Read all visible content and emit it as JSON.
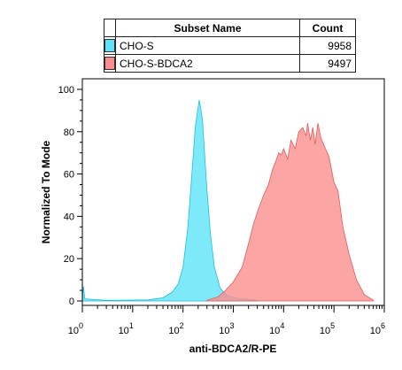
{
  "legend": {
    "headers": {
      "name": "Subset Name",
      "count": "Count"
    },
    "rows": [
      {
        "name": "CHO-S",
        "count": "9958",
        "color": "#5ee3f8"
      },
      {
        "name": "CHO-S-BDCA2",
        "count": "9497",
        "color": "#fa8e8f"
      }
    ]
  },
  "chart_data": {
    "type": "area",
    "xlabel": "anti-BDCA2/R-PE",
    "ylabel": "Normalized To Mode",
    "x_scale": "log",
    "xlim": [
      1,
      1000000
    ],
    "ylim": [
      0,
      105
    ],
    "yticks": [
      0,
      20,
      40,
      60,
      80,
      100
    ],
    "xticks": [
      {
        "base": "10",
        "exp": "0"
      },
      {
        "base": "10",
        "exp": "1"
      },
      {
        "base": "10",
        "exp": "2"
      },
      {
        "base": "10",
        "exp": "3"
      },
      {
        "base": "10",
        "exp": "4"
      },
      {
        "base": "10",
        "exp": "5"
      },
      {
        "base": "10",
        "exp": "6"
      }
    ],
    "grid": false,
    "series": [
      {
        "name": "CHO-S",
        "fill": "#5ee3f8",
        "stroke": "#1fbfd8",
        "points": [
          [
            1,
            0
          ],
          [
            1.05,
            7
          ],
          [
            1.12,
            1
          ],
          [
            3,
            0.3
          ],
          [
            20,
            0.5
          ],
          [
            40,
            1.5
          ],
          [
            60,
            4
          ],
          [
            80,
            8
          ],
          [
            100,
            16
          ],
          [
            125,
            35
          ],
          [
            150,
            60
          ],
          [
            175,
            82
          ],
          [
            195,
            90
          ],
          [
            210,
            95
          ],
          [
            225,
            91
          ],
          [
            245,
            85
          ],
          [
            265,
            72
          ],
          [
            300,
            52
          ],
          [
            350,
            32
          ],
          [
            420,
            16
          ],
          [
            550,
            6
          ],
          [
            750,
            2.5
          ],
          [
            1200,
            1.2
          ],
          [
            3000,
            0.3
          ]
        ]
      },
      {
        "name": "CHO-S-BDCA2",
        "fill": "#fa8e8f",
        "stroke": "#e45a5c",
        "points": [
          [
            300,
            0.3
          ],
          [
            500,
            2
          ],
          [
            700,
            5
          ],
          [
            1000,
            9
          ],
          [
            1500,
            16
          ],
          [
            2000,
            27
          ],
          [
            2500,
            36
          ],
          [
            3000,
            42
          ],
          [
            4000,
            50
          ],
          [
            5000,
            55
          ],
          [
            6000,
            62
          ],
          [
            7000,
            66
          ],
          [
            8000,
            70
          ],
          [
            9000,
            69
          ],
          [
            10000,
            72
          ],
          [
            12000,
            67
          ],
          [
            14000,
            76
          ],
          [
            17000,
            72
          ],
          [
            20000,
            80
          ],
          [
            24000,
            82
          ],
          [
            28000,
            78
          ],
          [
            30000,
            84
          ],
          [
            34000,
            76
          ],
          [
            38000,
            82
          ],
          [
            42000,
            74
          ],
          [
            48000,
            84
          ],
          [
            55000,
            77
          ],
          [
            65000,
            73
          ],
          [
            80000,
            68
          ],
          [
            100000,
            56
          ],
          [
            120000,
            52
          ],
          [
            150000,
            35
          ],
          [
            200000,
            22
          ],
          [
            280000,
            10
          ],
          [
            400000,
            3
          ],
          [
            600000,
            0.5
          ]
        ]
      }
    ]
  }
}
